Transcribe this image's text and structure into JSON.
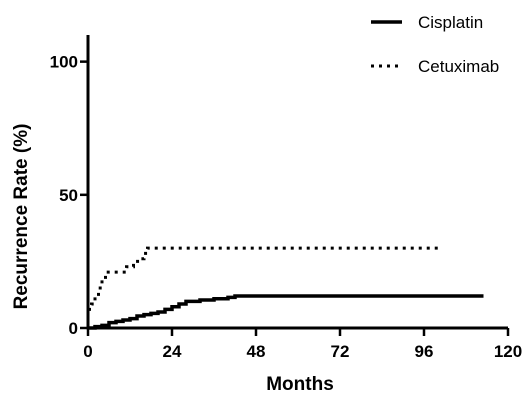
{
  "chart_data": {
    "type": "line",
    "xlabel": "Months",
    "ylabel": "Recurrence Rate (%)",
    "xlim": [
      0,
      120
    ],
    "ylim": [
      0,
      110
    ],
    "x_ticks": [
      "0",
      "24",
      "48",
      "72",
      "96",
      "120"
    ],
    "y_ticks": [
      "0",
      "50",
      "100"
    ],
    "legend_position": "top-right",
    "grid": false,
    "series": [
      {
        "name": "Cisplatin",
        "style": "solid",
        "color": "#000000",
        "points": [
          [
            0,
            0
          ],
          [
            2,
            0.5
          ],
          [
            4,
            1
          ],
          [
            6,
            2
          ],
          [
            8,
            2.5
          ],
          [
            10,
            3
          ],
          [
            12,
            3.5
          ],
          [
            14,
            4.5
          ],
          [
            16,
            5
          ],
          [
            18,
            5.5
          ],
          [
            20,
            6
          ],
          [
            22,
            7
          ],
          [
            24,
            8
          ],
          [
            26,
            9
          ],
          [
            28,
            10
          ],
          [
            32,
            10.5
          ],
          [
            36,
            11
          ],
          [
            40,
            11.5
          ],
          [
            42,
            12
          ],
          [
            60,
            12
          ],
          [
            80,
            12
          ],
          [
            100,
            12
          ],
          [
            113,
            12
          ]
        ]
      },
      {
        "name": "Cetuximab",
        "style": "dotted",
        "color": "#000000",
        "points": [
          [
            0,
            7
          ],
          [
            1,
            9
          ],
          [
            2,
            12
          ],
          [
            3,
            15
          ],
          [
            4,
            18
          ],
          [
            5,
            21
          ],
          [
            10,
            21
          ],
          [
            11,
            23
          ],
          [
            13,
            25
          ],
          [
            15,
            26
          ],
          [
            16,
            28
          ],
          [
            17,
            30
          ],
          [
            40,
            30
          ],
          [
            60,
            30
          ],
          [
            80,
            30
          ],
          [
            100,
            30
          ]
        ]
      }
    ]
  }
}
